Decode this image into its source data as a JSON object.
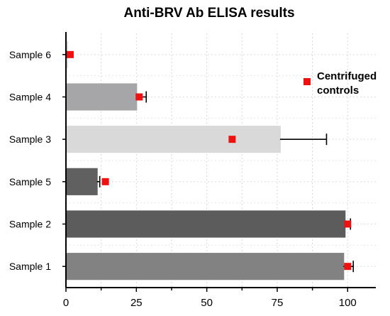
{
  "chart_data": {
    "type": "bar",
    "orientation": "horizontal",
    "title": "Anti-BRV Ab ELISA results",
    "xlabel": "",
    "ylabel": "",
    "xlim": [
      0,
      110
    ],
    "x_ticks": [
      0,
      25,
      50,
      75,
      100
    ],
    "grid": true,
    "categories": [
      "Sample 6",
      "Sample 4",
      "Sample 3",
      "Sample 5",
      "Sample 2",
      "Sample 1"
    ],
    "bars": [
      {
        "category": "Sample 6",
        "value": 0.5,
        "error": 0,
        "color": "#dddddd",
        "control": 1.5
      },
      {
        "category": "Sample 4",
        "value": 25,
        "error": 3.5,
        "color": "#a6a6a8",
        "control": 26
      },
      {
        "category": "Sample 3",
        "value": 76,
        "error": 16.5,
        "color": "#d9d9d9",
        "control": 59
      },
      {
        "category": "Sample 5",
        "value": 11,
        "error": 1,
        "color": "#606060",
        "control": 14
      },
      {
        "category": "Sample 2",
        "value": 99,
        "error": 2,
        "color": "#5c5c5c",
        "control": 100
      },
      {
        "category": "Sample 1",
        "value": 98.5,
        "error": 3.5,
        "color": "#828282",
        "control": 100
      }
    ],
    "series": [
      {
        "name": "Centrifuged controls",
        "marker": "square",
        "color": "#ee1111"
      }
    ],
    "legend": {
      "placement": "top-right",
      "lines": [
        "Centrifuged",
        "controls"
      ]
    }
  }
}
